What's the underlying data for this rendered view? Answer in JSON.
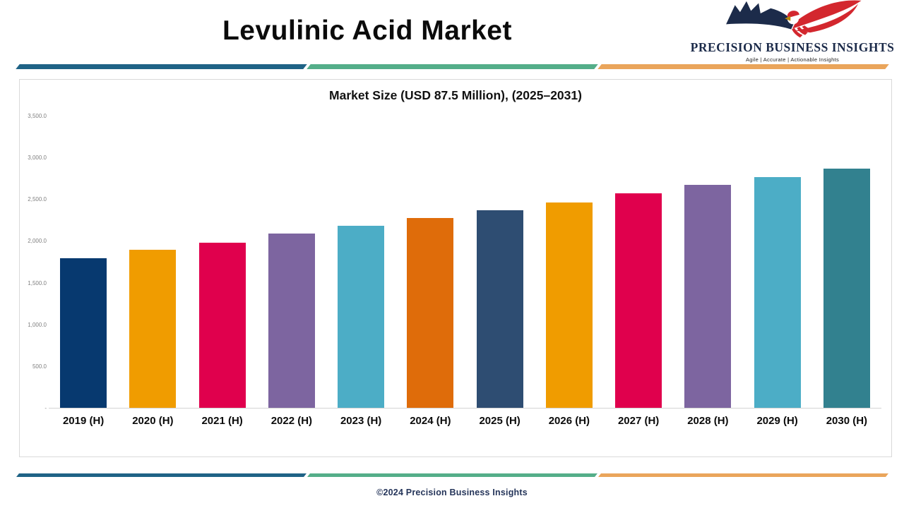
{
  "header": {
    "title": "Levulinic Acid Market",
    "logo": {
      "name": "PRECISION BUSINESS INSIGHTS",
      "tagline": "Agile | Accurate | Actionable Insights",
      "navy": "#1c2b4a",
      "red": "#d3272e"
    }
  },
  "divider_colors": [
    "#1f6386",
    "#54ae89",
    "#eaa55b"
  ],
  "chart_data": {
    "type": "bar",
    "title": "Market Size (USD 87.5 Million), (2025–2031)",
    "categories": [
      "2019 (H)",
      "2020 (H)",
      "2021 (H)",
      "2022 (H)",
      "2023 (H)",
      "2024 (H)",
      "2025 (H)",
      "2026 (H)",
      "2027 (H)",
      "2028 (H)",
      "2029 (H)",
      "2030 (H)"
    ],
    "values": [
      1800,
      1900,
      1985,
      2090,
      2185,
      2280,
      2375,
      2465,
      2575,
      2675,
      2770,
      2870
    ],
    "bar_colors": [
      "#07396f",
      "#f09c00",
      "#e0004d",
      "#7d65a0",
      "#4cadc6",
      "#df6c0a",
      "#2e4d72",
      "#f09c00",
      "#e0004d",
      "#7d65a0",
      "#4cadc6",
      "#32818f"
    ],
    "xlabel": "",
    "ylabel": "",
    "ylim": [
      0,
      3500
    ],
    "y_ticks": [
      {
        "value": 3500,
        "label": "3,500.0"
      },
      {
        "value": 3000,
        "label": "3,000.0"
      },
      {
        "value": 2500,
        "label": "2,500.0"
      },
      {
        "value": 2000,
        "label": "2,000.0"
      },
      {
        "value": 1500,
        "label": "1,500.0"
      },
      {
        "value": 1000,
        "label": "1,000.0"
      },
      {
        "value": 500,
        "label": "500.0"
      },
      {
        "value": 0,
        "label": "-"
      }
    ],
    "grid": false,
    "legend": false
  },
  "footer": {
    "copyright": "©2024 Precision Business Insights"
  }
}
